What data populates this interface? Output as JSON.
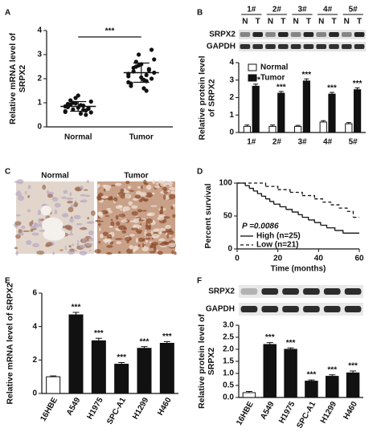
{
  "chart_data": [
    {
      "panel": "A",
      "type": "dot",
      "ylabel": "Relative mRNA level of SRPX2",
      "ylim": [
        0,
        4
      ],
      "yticks": [
        0,
        1,
        2,
        3,
        4
      ],
      "categories": [
        "Normal",
        "Tumor"
      ],
      "annotation": "***",
      "color": "#111",
      "groups": [
        {
          "values": [
            0.85,
            0.7,
            1.0,
            0.6,
            0.9,
            1.1,
            0.75,
            0.8,
            0.95,
            0.5,
            1.2,
            0.65,
            0.88,
            0.72,
            1.05,
            0.55,
            0.92,
            0.78,
            1.3,
            0.82,
            0.68,
            0.98,
            0.62,
            0.87
          ],
          "mean": 0.85,
          "sd": 0.2
        },
        {
          "values": [
            2.2,
            1.9,
            2.5,
            2.8,
            1.6,
            2.3,
            2.0,
            2.6,
            1.8,
            2.4,
            3.0,
            2.1,
            1.5,
            2.7,
            2.25,
            1.95,
            2.45,
            3.2,
            2.05,
            1.7,
            2.35,
            2.55,
            1.85,
            2.15
          ],
          "mean": 2.25,
          "sd": 0.4
        }
      ]
    },
    {
      "panel": "B",
      "type": "grouped_bar",
      "ylabel": "Relative protein level of SRPX2",
      "ylim": [
        0,
        4
      ],
      "yticks": [
        0,
        1,
        2,
        3,
        4
      ],
      "blot": {
        "groups": [
          "1#",
          "2#",
          "3#",
          "4#",
          "5#"
        ],
        "lanes": [
          "N",
          "T",
          "N",
          "T",
          "N",
          "T",
          "N",
          "T",
          "N",
          "T"
        ],
        "rows": [
          "SRPX2",
          "GAPDH"
        ]
      },
      "categories": [
        "1#",
        "2#",
        "3#",
        "4#",
        "5#"
      ],
      "series": [
        {
          "name": "Normal",
          "color": "#ffffff",
          "values": [
            0.35,
            0.35,
            0.35,
            0.6,
            0.5
          ],
          "errors": [
            0.08,
            0.08,
            0.06,
            0.08,
            0.07
          ]
        },
        {
          "name": "Tumor",
          "color": "#111111",
          "values": [
            2.65,
            2.25,
            2.95,
            2.2,
            2.45
          ],
          "errors": [
            0.12,
            0.1,
            0.12,
            0.1,
            0.1
          ],
          "sig_labels": [
            "***",
            "***",
            "***",
            "***",
            "***"
          ]
        }
      ]
    },
    {
      "panel": "C",
      "type": "image",
      "titles": [
        "Normal",
        "Tumor"
      ]
    },
    {
      "panel": "D",
      "type": "step",
      "xlabel": "Time (months)",
      "ylabel": "Percent survival",
      "xlim": [
        0,
        60
      ],
      "xticks": [
        0,
        20,
        40,
        60
      ],
      "ylim": [
        0,
        100
      ],
      "yticks": [
        0,
        50,
        100
      ],
      "annotation": "P =0.0086",
      "series": [
        {
          "name": "High (n=25)",
          "color": "#111",
          "dash": false,
          "x": [
            0,
            4,
            6,
            8,
            10,
            12,
            14,
            16,
            18,
            21,
            24,
            27,
            30,
            32,
            35,
            38,
            41,
            44,
            48,
            52,
            60
          ],
          "values": [
            100,
            96,
            92,
            88,
            84,
            80,
            76,
            72,
            68,
            64,
            60,
            56,
            52,
            48,
            44,
            40,
            36,
            32,
            28,
            24,
            24
          ]
        },
        {
          "name": "Low (n=21)",
          "color": "#111",
          "dash": true,
          "x": [
            0,
            14,
            20,
            26,
            32,
            38,
            42,
            46,
            50,
            54,
            57,
            60
          ],
          "values": [
            100,
            95,
            90,
            86,
            81,
            76,
            71,
            67,
            62,
            57,
            48,
            48
          ]
        }
      ]
    },
    {
      "panel": "E",
      "type": "bar",
      "ylabel": "Relative mRNA level of SRPX2",
      "ylim": [
        0,
        6
      ],
      "yticks": [
        0,
        2,
        4,
        6
      ],
      "categories": [
        "16HBE",
        "A549",
        "H1975",
        "SPC-A1",
        "H1299",
        "H460"
      ],
      "values": [
        1.0,
        4.7,
        3.15,
        1.75,
        2.7,
        3.0
      ],
      "errors": [
        0.05,
        0.15,
        0.15,
        0.1,
        0.1,
        0.1
      ],
      "colors": [
        "#ffffff",
        "#111111",
        "#111111",
        "#111111",
        "#111111",
        "#111111"
      ],
      "sig_labels": [
        null,
        "***",
        "***",
        "***",
        "***",
        "***"
      ]
    },
    {
      "panel": "F",
      "type": "bar",
      "ylabel": "Relative protein level of SRPX2",
      "ylim": [
        0,
        3
      ],
      "yticks": [
        {
          "value": 0,
          "label": "0.0"
        },
        {
          "value": 0.5,
          "label": "0.5"
        },
        {
          "value": 1,
          "label": "1.0"
        },
        {
          "value": 1.5,
          "label": "1.5"
        },
        {
          "value": 2,
          "label": "2.0"
        },
        {
          "value": 2.5,
          "label": "2.5"
        },
        {
          "value": 3,
          "label": "3.0"
        }
      ],
      "blot": {
        "rows": [
          "SRPX2",
          "GAPDH"
        ]
      },
      "categories": [
        "16HBE",
        "A549",
        "H1975",
        "SPC-A1",
        "H1299",
        "H460"
      ],
      "values": [
        0.2,
        2.2,
        2.0,
        0.68,
        0.88,
        1.02
      ],
      "errors": [
        0.05,
        0.08,
        0.06,
        0.05,
        0.06,
        0.08
      ],
      "colors": [
        "#ffffff",
        "#111111",
        "#111111",
        "#111111",
        "#111111",
        "#111111"
      ],
      "sig_labels": [
        null,
        "***",
        "***",
        "***",
        "***",
        "***"
      ]
    }
  ]
}
